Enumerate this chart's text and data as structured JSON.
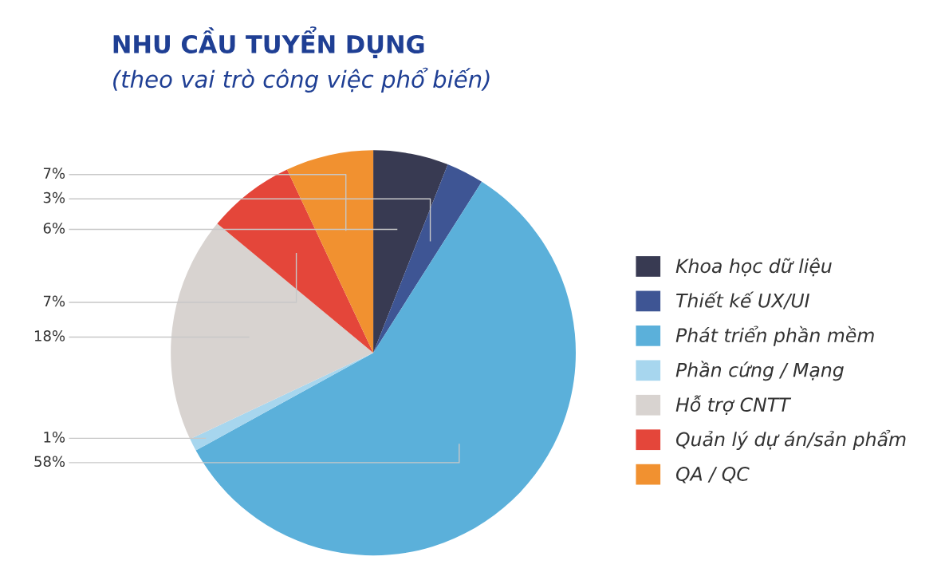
{
  "chart_data": {
    "type": "pie",
    "title": "NHU CẦU TUYỂN DỤNG",
    "subtitle": "(theo vai trò công việc phổ biến)",
    "categories": [
      "Khoa học dữ liệu",
      "Thiết kế UX/UI",
      "Phát triển phần mềm",
      "Phần cứng / Mạng",
      "Hỗ trợ CNTT",
      "Quản lý dự án/sản phẩm",
      "QA / QC"
    ],
    "values": [
      6,
      3,
      58,
      1,
      18,
      7,
      7
    ],
    "colors": [
      "#383a52",
      "#3e5594",
      "#5bb0da",
      "#a7d6ee",
      "#d8d3d0",
      "#e4463a",
      "#f19130"
    ],
    "value_labels": [
      "6%",
      "3%",
      "58%",
      "1%",
      "18%",
      "7%",
      "7%"
    ],
    "legend": "right"
  }
}
